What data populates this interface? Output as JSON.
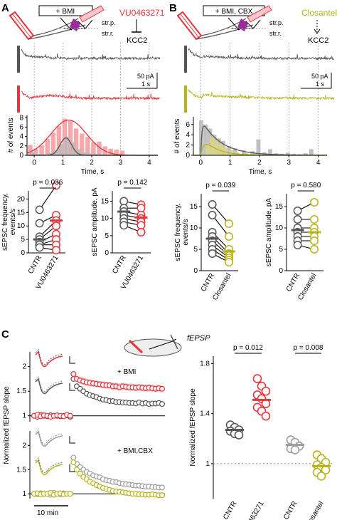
{
  "colors": {
    "control": "#555555",
    "red": "#e8343a",
    "red_light": "#f4a0a3",
    "olive": "#b7b41a",
    "olive_light": "#d8d58a",
    "gray_light": "#9d9d9d",
    "gray_bar": "#b9b9b9"
  },
  "panel_a": {
    "letter": "A",
    "drug_box": "+ BMI",
    "layer_1": "str.p.",
    "layer_2": "str.r.",
    "drug": "VU0463271",
    "target": "KCC2",
    "scale_amp": "50 pA",
    "scale_time": "1 s"
  },
  "panel_b": {
    "letter": "B",
    "drug_box": "+ BMI, CBX",
    "layer_1": "str.p.",
    "layer_2": "str.r.",
    "drug": "Closantel",
    "target": "KCC2",
    "scale_amp": "50 pA",
    "scale_time": "1 s"
  },
  "panel_c": {
    "letter": "C",
    "fepsp_label": "fEPSP",
    "top_label": "+ BMI",
    "bottom_label": "+ BMI,CBX",
    "time_bar_label": "10 min"
  },
  "chart_data": [
    {
      "id": "A-hist",
      "type": "bar",
      "xlabel": "Time, s",
      "ylabel": "# of events",
      "x_ticks": [
        "0",
        "1",
        "2",
        "3",
        "4"
      ],
      "y_ticks": [
        "0",
        "2",
        "4",
        "6",
        "8"
      ],
      "xlim": [
        -0.25,
        4.3
      ],
      "ylim": [
        0,
        8.5
      ],
      "bin_width": 0.2,
      "series": [
        {
          "color_key": "red_light",
          "x": [
            -0.1,
            0.1,
            0.3,
            0.5,
            0.7,
            0.9,
            1.1,
            1.3,
            1.5,
            1.7,
            1.9,
            2.1,
            2.3,
            2.5,
            2.7,
            2.9,
            3.1
          ],
          "values": [
            2.2,
            1.4,
            2.1,
            3.5,
            4.8,
            6.2,
            7.8,
            7.3,
            5.7,
            4.6,
            3.9,
            2.8,
            2.9,
            1.9,
            1.4,
            1.2,
            1.0
          ]
        },
        {
          "color_key": "gray_bar",
          "x": [
            -0.1,
            0.1,
            0.3,
            0.5,
            0.7,
            0.9,
            1.1,
            1.3,
            1.5,
            1.7,
            1.9,
            2.1,
            2.3,
            2.5,
            2.7,
            2.9,
            3.1
          ],
          "values": [
            0.8,
            0.3,
            0.2,
            0.5,
            1.0,
            2.4,
            4.0,
            2.8,
            1.3,
            0.6,
            0.4,
            0.3,
            0.2,
            0.2,
            0.2,
            0.1,
            0.1
          ]
        }
      ],
      "fits": [
        {
          "color_key": "red",
          "model": "gauss",
          "amp": 7.5,
          "center": 1.2,
          "sigma": 0.62
        },
        {
          "color_key": "control",
          "model": "gauss",
          "amp": 3.7,
          "center": 1.1,
          "sigma": 0.2
        }
      ]
    },
    {
      "id": "B-hist",
      "type": "bar",
      "xlabel": "Time, s",
      "ylabel": "# of events",
      "x_ticks": [
        "0",
        "1",
        "2",
        "3",
        "4"
      ],
      "y_ticks": [
        "0",
        "2",
        "4",
        "6"
      ],
      "xlim": [
        -0.25,
        4.3
      ],
      "ylim": [
        0,
        7.5
      ],
      "bin_width": 0.18,
      "series": [
        {
          "color_key": "gray_bar",
          "x": [
            0.05,
            0.2,
            0.35,
            0.5,
            0.65,
            0.8,
            1.0,
            1.2,
            1.5,
            1.8,
            2.0,
            2.2,
            2.4,
            2.6,
            2.8,
            3.0,
            3.2,
            3.4,
            3.6,
            3.8
          ],
          "values": [
            6.8,
            6.0,
            5.2,
            4.0,
            3.3,
            2.8,
            1.8,
            1.4,
            1.0,
            0.8,
            3.1,
            0.6,
            1.2,
            0.4,
            0.3,
            0.5,
            0.3,
            0.2,
            0.4,
            1.2
          ]
        },
        {
          "color_key": "olive_light",
          "x": [
            0.2,
            0.35,
            0.5,
            0.65,
            0.8,
            1.0,
            1.2,
            1.5,
            1.8,
            2.2,
            2.6
          ],
          "values": [
            2.2,
            3.6,
            2.9,
            2.2,
            1.5,
            1.0,
            0.6,
            0.4,
            0.3,
            0.2,
            0.1
          ]
        }
      ],
      "fits": [
        {
          "color_key": "control",
          "model": "rise_decay",
          "amp": 7.2,
          "tau_rise": 0.04,
          "tau_decay": 0.65
        },
        {
          "color_key": "olive",
          "model": "rise_decay",
          "amp": 4.1,
          "tau_rise": 0.12,
          "tau_decay": 0.45
        }
      ]
    },
    {
      "id": "A-freq",
      "type": "scatter",
      "ylabel": "sEPSC frequency, events/s",
      "categories": [
        "CNTR",
        "VU0463271"
      ],
      "y_ticks": [
        "0",
        "5",
        "10",
        "15",
        "20"
      ],
      "ylim": [
        0,
        23
      ],
      "p_value": "p = 0.036",
      "mean_values": [
        5.0,
        12.0
      ],
      "pairs": [
        [
          16,
          25
        ],
        [
          11,
          14
        ],
        [
          6,
          12
        ],
        [
          5,
          10
        ],
        [
          4,
          7
        ],
        [
          3,
          5
        ],
        [
          3,
          3
        ],
        [
          2,
          1
        ]
      ]
    },
    {
      "id": "A-amp",
      "type": "scatter",
      "ylabel": "sEPSC amplitude, pA",
      "categories": [
        "CNTR",
        "VU0463271"
      ],
      "y_ticks": [
        "0",
        "5",
        "10",
        "15"
      ],
      "ylim": [
        0,
        18
      ],
      "p_value": "p = 0.142",
      "mean_values": [
        12.0,
        10.3
      ],
      "pairs": [
        [
          15,
          14
        ],
        [
          13,
          13
        ],
        [
          12,
          11
        ],
        [
          11,
          10
        ],
        [
          10,
          9
        ],
        [
          9,
          8
        ],
        [
          8,
          6
        ]
      ]
    },
    {
      "id": "B-freq",
      "type": "scatter",
      "ylabel": "sEPSC frequency, events/s",
      "categories": [
        "CNTR",
        "Closantel"
      ],
      "y_ticks": [
        "0",
        "5",
        "10",
        "15"
      ],
      "ylim": [
        0,
        18
      ],
      "p_value": "p = 0.039",
      "mean_values": [
        7.5,
        4.5
      ],
      "pairs": [
        [
          15.5,
          11
        ],
        [
          13,
          8
        ],
        [
          9,
          5
        ],
        [
          8,
          4
        ],
        [
          7,
          3.5
        ],
        [
          6,
          3
        ],
        [
          5,
          2.5
        ],
        [
          4,
          2
        ]
      ]
    },
    {
      "id": "B-amp",
      "type": "scatter",
      "ylabel": "sEPSC amplitude, pA",
      "categories": [
        "CNTR",
        "Closantel"
      ],
      "y_ticks": [
        "0",
        "5",
        "10",
        "15"
      ],
      "ylim": [
        0,
        18
      ],
      "p_value": "p = 0.580",
      "mean_values": [
        9.5,
        9.0
      ],
      "pairs": [
        [
          14,
          16
        ],
        [
          12,
          12
        ],
        [
          10,
          10
        ],
        [
          9,
          9
        ],
        [
          8,
          8
        ],
        [
          7,
          7
        ],
        [
          6,
          5
        ]
      ]
    },
    {
      "id": "C-time-bmi",
      "type": "scatter",
      "ylabel": "Normalized fEPSP slope",
      "y_ticks": [
        "1",
        "1.5",
        "2"
      ],
      "ylim": [
        0.88,
        2.3
      ],
      "series": [
        {
          "color_key": "control",
          "name_key": "CNTR",
          "values": [
            1.0,
            0.98,
            1.02,
            1.0,
            0.99,
            1.01,
            1.0,
            1.0,
            0.99,
            1.0,
            1.01,
            0.98,
            1.75,
            1.6,
            1.55,
            1.5,
            1.45,
            1.42,
            1.4,
            1.38,
            1.35,
            1.33,
            1.32,
            1.3,
            1.3,
            1.28,
            1.28,
            1.27,
            1.27,
            1.26,
            1.26,
            1.25,
            1.27,
            1.25,
            1.26,
            1.24,
            1.25,
            1.25,
            1.26,
            1.24
          ]
        },
        {
          "color_key": "red",
          "name_key": "VU0463271",
          "values": [
            1.0,
            1.02,
            0.99,
            1.01,
            1.0,
            0.98,
            1.0,
            1.01,
            1.0,
            0.99,
            1.02,
            1.0,
            1.85,
            1.75,
            1.72,
            1.7,
            1.68,
            1.67,
            1.66,
            1.65,
            1.64,
            1.63,
            1.62,
            1.62,
            1.6,
            1.6,
            1.58,
            1.6,
            1.59,
            1.58,
            1.58,
            1.57,
            1.58,
            1.57,
            1.56,
            1.57,
            1.56,
            1.55,
            1.56,
            1.55
          ]
        }
      ]
    },
    {
      "id": "C-time-cbx",
      "type": "scatter",
      "ylabel": "Normalized fEPSP slope",
      "y_ticks": [
        "1",
        "1.5",
        "2"
      ],
      "ylim": [
        0.9,
        2.3
      ],
      "series": [
        {
          "color_key": "gray_light",
          "name_key": "CNTR",
          "values": [
            1.0,
            0.99,
            1.01,
            1.0,
            1.0,
            0.98,
            1.02,
            1.0,
            0.99,
            1.01,
            1.0,
            1.0,
            1.75,
            1.62,
            1.55,
            1.5,
            1.45,
            1.42,
            1.38,
            1.36,
            1.34,
            1.3,
            1.28,
            1.27,
            1.25,
            1.24,
            1.22,
            1.21,
            1.2,
            1.19,
            1.18,
            1.17,
            1.17,
            1.16,
            1.15,
            1.15,
            1.14,
            1.14,
            1.13,
            1.13
          ]
        },
        {
          "color_key": "olive",
          "name_key": "Closantel",
          "values": [
            1.0,
            1.01,
            0.99,
            1.0,
            1.0,
            1.02,
            0.98,
            1.0,
            1.01,
            0.99,
            1.0,
            1.0,
            1.65,
            1.5,
            1.42,
            1.35,
            1.3,
            1.25,
            1.22,
            1.18,
            1.15,
            1.12,
            1.1,
            1.08,
            1.06,
            1.05,
            1.04,
            1.03,
            1.02,
            1.01,
            1.0,
            1.0,
            0.99,
            0.99,
            0.98,
            0.98,
            0.99,
            0.98,
            0.97,
            0.97
          ]
        }
      ]
    },
    {
      "id": "C-summary",
      "type": "scatter",
      "ylabel": "Normalized fEPSP slope",
      "categories": [
        "CNTR",
        "VU0463271",
        "CNTR",
        "Closantel"
      ],
      "y_ticks": [
        "1",
        "1.4",
        "1.8"
      ],
      "ylim": [
        0.72,
        1.86
      ],
      "p_values": [
        "p = 0.012",
        "p = 0.008"
      ],
      "groups": [
        {
          "color_key": "control",
          "mean": 1.27,
          "points": [
            1.31,
            1.29,
            1.27,
            1.26,
            1.24,
            1.23
          ]
        },
        {
          "color_key": "red",
          "mean": 1.51,
          "points": [
            1.68,
            1.62,
            1.58,
            1.55,
            1.52,
            1.48,
            1.45,
            1.42,
            1.38
          ]
        },
        {
          "color_key": "gray_light",
          "mean": 1.15,
          "points": [
            1.19,
            1.17,
            1.14,
            1.12,
            1.11
          ]
        },
        {
          "color_key": "olive",
          "mean": 0.98,
          "points": [
            1.07,
            1.04,
            1.01,
            0.99,
            0.97,
            0.95,
            0.93,
            0.9
          ]
        }
      ]
    }
  ]
}
